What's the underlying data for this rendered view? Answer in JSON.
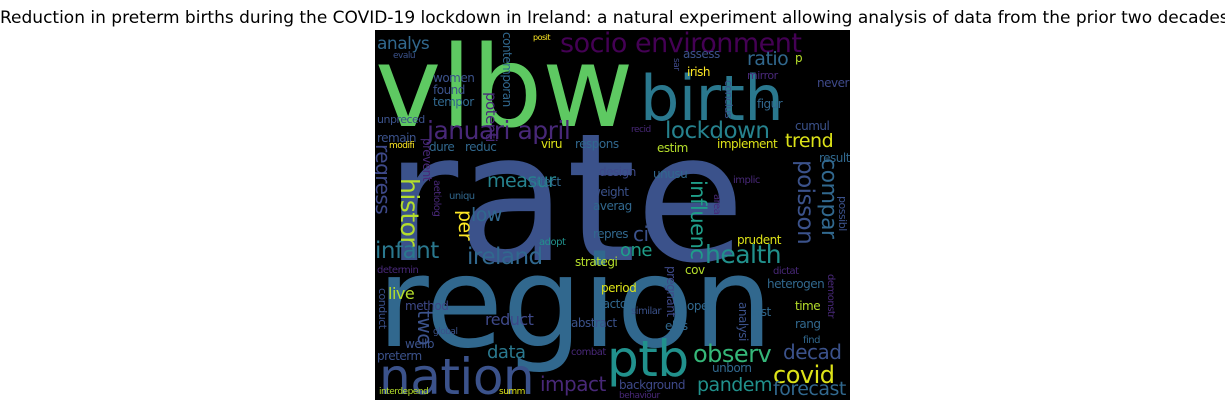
{
  "title": "Reduction in preterm births during the COVID-19 lockdown in Ireland: a natural experiment allowing analysis of data from the prior two decades.",
  "words": [
    {
      "text": "vlbw",
      "color": "#5ec962"
    },
    {
      "text": "rate",
      "color": "#3b528b"
    },
    {
      "text": "region",
      "color": "#31688e"
    },
    {
      "text": "birth",
      "color": "#2a788e"
    },
    {
      "text": "nation",
      "color": "#3b528b"
    },
    {
      "text": "ptb",
      "color": "#21918c"
    },
    {
      "text": "socio environment",
      "color": "#440154"
    },
    {
      "text": "januari april",
      "color": "#482878"
    },
    {
      "text": "lockdown",
      "color": "#26828e"
    },
    {
      "text": "health",
      "color": "#21918c"
    },
    {
      "text": "ireland",
      "color": "#31688e"
    },
    {
      "text": "infant",
      "color": "#2a788e"
    },
    {
      "text": "observ",
      "color": "#35b779"
    },
    {
      "text": "covid",
      "color": "#dde318"
    },
    {
      "text": "pandem",
      "color": "#21918c"
    },
    {
      "text": "histor",
      "color": "#b5de2b"
    },
    {
      "text": "regress",
      "color": "#3e4989"
    },
    {
      "text": "poisson",
      "color": "#3b528b"
    },
    {
      "text": "compar",
      "color": "#31688e"
    },
    {
      "text": "influenc",
      "color": "#1f9e89"
    },
    {
      "text": "impact",
      "color": "#482878"
    },
    {
      "text": "decad",
      "color": "#3b528b"
    },
    {
      "text": "forecast",
      "color": "#31688e"
    },
    {
      "text": "data",
      "color": "#2a788e"
    },
    {
      "text": "two",
      "color": "#3b528b"
    },
    {
      "text": "analys",
      "color": "#31688e"
    },
    {
      "text": "ratio",
      "color": "#31688e"
    },
    {
      "text": "trend",
      "color": "#dde318"
    },
    {
      "text": "measur",
      "color": "#26828e"
    },
    {
      "text": "per",
      "color": "#fde725"
    },
    {
      "text": "low",
      "color": "#31688e"
    },
    {
      "text": "ci",
      "color": "#3b528b"
    },
    {
      "text": "one",
      "color": "#1f9e89"
    },
    {
      "text": "live",
      "color": "#b5de2b"
    },
    {
      "text": "reduct",
      "color": "#3e4989"
    },
    {
      "text": "potenti",
      "color": "#482878"
    },
    {
      "text": "women",
      "color": "#3b528b"
    },
    {
      "text": "found",
      "color": "#3b528b"
    },
    {
      "text": "tempor",
      "color": "#31688e"
    },
    {
      "text": "contemporan",
      "color": "#31688e"
    },
    {
      "text": "assess",
      "color": "#3b528b"
    },
    {
      "text": "irish",
      "color": "#fde725"
    },
    {
      "text": "never",
      "color": "#3e4989"
    },
    {
      "text": "mirror",
      "color": "#482878"
    },
    {
      "text": "figur",
      "color": "#31688e"
    },
    {
      "text": "conclus",
      "color": "#3b528b"
    },
    {
      "text": "cumul",
      "color": "#3b528b"
    },
    {
      "text": "result",
      "color": "#31688e"
    },
    {
      "text": "implement",
      "color": "#dde318"
    },
    {
      "text": "estim",
      "color": "#b5de2b"
    },
    {
      "text": "respons",
      "color": "#31688e"
    },
    {
      "text": "viru",
      "color": "#dde318"
    },
    {
      "text": "reduc",
      "color": "#31688e"
    },
    {
      "text": "dure",
      "color": "#31688e"
    },
    {
      "text": "remain",
      "color": "#3b528b"
    },
    {
      "text": "unpreced",
      "color": "#3b528b"
    },
    {
      "text": "modifi",
      "color": "#fde725"
    },
    {
      "text": "prevent",
      "color": "#482878"
    },
    {
      "text": "aetiolog",
      "color": "#482878"
    },
    {
      "text": "uniqu",
      "color": "#31688e"
    },
    {
      "text": "effect",
      "color": "#31688e"
    },
    {
      "text": "design",
      "color": "#3e4989"
    },
    {
      "text": "weight",
      "color": "#3b528b"
    },
    {
      "text": "averag",
      "color": "#31688e"
    },
    {
      "text": "unusu",
      "color": "#31688e"
    },
    {
      "text": "implic",
      "color": "#482878"
    },
    {
      "text": "area",
      "color": "#482878"
    },
    {
      "text": "possibl",
      "color": "#3b528b"
    },
    {
      "text": "prudent",
      "color": "#dde318"
    },
    {
      "text": "adopt",
      "color": "#21918c"
    },
    {
      "text": "repres",
      "color": "#31688e"
    },
    {
      "text": "strategi",
      "color": "#b5de2b"
    },
    {
      "text": "dictat",
      "color": "#482878"
    },
    {
      "text": "heterogen",
      "color": "#31688e"
    },
    {
      "text": "cov",
      "color": "#b5de2b"
    },
    {
      "text": "determin",
      "color": "#482878"
    },
    {
      "text": "pregnant",
      "color": "#3e4989"
    },
    {
      "text": "period",
      "color": "#dde318"
    },
    {
      "text": "factor",
      "color": "#31688e"
    },
    {
      "text": "oper",
      "color": "#31688e"
    },
    {
      "text": "elus",
      "color": "#31688e"
    },
    {
      "text": "similar",
      "color": "#3b528b"
    },
    {
      "text": "abstract",
      "color": "#3b528b"
    },
    {
      "text": "analysi",
      "color": "#3b528b"
    },
    {
      "text": "last",
      "color": "#31688e"
    },
    {
      "text": "time",
      "color": "#b5de2b"
    },
    {
      "text": "rang",
      "color": "#31688e"
    },
    {
      "text": "demonstr",
      "color": "#482878"
    },
    {
      "text": "find",
      "color": "#31688e"
    },
    {
      "text": "method",
      "color": "#3e4989"
    },
    {
      "text": "conduct",
      "color": "#3b528b"
    },
    {
      "text": "global",
      "color": "#3b528b"
    },
    {
      "text": "wellb",
      "color": "#3b528b"
    },
    {
      "text": "preterm",
      "color": "#3b528b"
    },
    {
      "text": "combat",
      "color": "#482878"
    },
    {
      "text": "background",
      "color": "#3e4989"
    },
    {
      "text": "unborn",
      "color": "#31688e"
    },
    {
      "text": "interdepend",
      "color": "#b5de2b"
    },
    {
      "text": "summ",
      "color": "#dde318"
    },
    {
      "text": "behaviour",
      "color": "#482878"
    },
    {
      "text": "posit",
      "color": "#fde725"
    },
    {
      "text": "sar",
      "color": "#3e4989"
    },
    {
      "text": "p",
      "color": "#b5de2b"
    },
    {
      "text": "recid",
      "color": "#482878"
    },
    {
      "text": "evalu",
      "color": "#3b528b"
    }
  ]
}
